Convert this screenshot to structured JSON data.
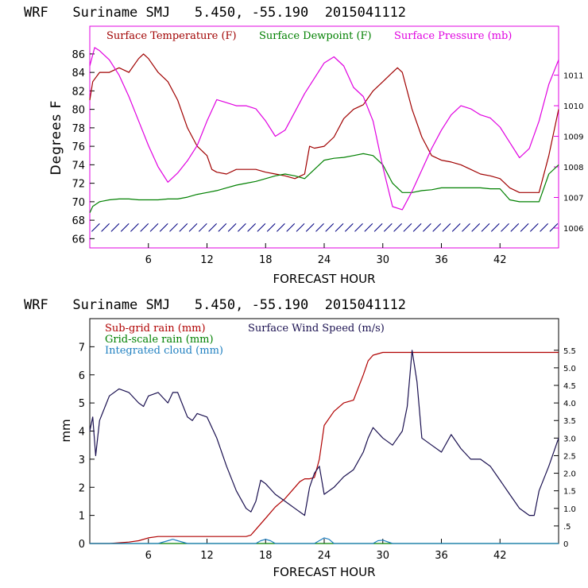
{
  "chart_data": [
    {
      "type": "line",
      "title": "WRF   Suriname SMJ   5.450, -55.190  2015041112",
      "xlabel": "FORECAST HOUR",
      "ylabel": "Degrees F",
      "xlim": [
        0,
        48
      ],
      "ylim": [
        65,
        89
      ],
      "xticks": [
        "6",
        "12",
        "18",
        "24",
        "30",
        "36",
        "42"
      ],
      "yticks": [
        "66",
        "68",
        "70",
        "72",
        "74",
        "76",
        "78",
        "80",
        "82",
        "84",
        "86"
      ],
      "right_axis": {
        "ylim": [
          1005.35,
          1012.6
        ],
        "ticks": [
          "1006",
          "1007",
          "1008",
          "1009",
          "1010",
          "1011"
        ]
      },
      "legend": [
        "Surface Temperature (F)",
        "Surface Dewpoint (F)",
        "Surface Pressure (mb)"
      ],
      "colors": {
        "temp": "#a00000",
        "dew": "#008000",
        "pres": "#e000e0",
        "wind": "#000080"
      },
      "series": [
        {
          "name": "Surface Temperature (F)",
          "axis": "left",
          "x": [
            0,
            0.3,
            1,
            2,
            3,
            4,
            5,
            5.5,
            6,
            7,
            8,
            9,
            10,
            11,
            12,
            12.5,
            13,
            14,
            15,
            16,
            17,
            18,
            19,
            20,
            21,
            22,
            22.5,
            23,
            24,
            25,
            26,
            27,
            28,
            29,
            30,
            31,
            31.5,
            32,
            33,
            34,
            35,
            36,
            37,
            38,
            39,
            40,
            41,
            42,
            42.5,
            43,
            44,
            45,
            46,
            47,
            48
          ],
          "values": [
            81,
            83,
            84,
            84,
            84.5,
            84,
            85.5,
            86,
            85.5,
            84,
            83,
            81,
            78,
            76,
            75,
            73.5,
            73.2,
            73,
            73.5,
            73.5,
            73.5,
            73.2,
            73,
            72.8,
            72.5,
            73,
            76,
            75.8,
            76,
            77,
            79,
            80,
            80.5,
            82,
            83,
            84,
            84.5,
            84,
            80,
            77,
            75,
            74.5,
            74.3,
            74,
            73.5,
            73,
            72.8,
            72.5,
            72,
            71.5,
            71,
            71,
            71,
            75,
            80
          ]
        },
        {
          "name": "Surface Dewpoint (F)",
          "axis": "left",
          "x": [
            0,
            0.3,
            1,
            2,
            3,
            4,
            5,
            6,
            7,
            8,
            9,
            10,
            11,
            12,
            13,
            14,
            15,
            16,
            17,
            18,
            19,
            20,
            21,
            22,
            23,
            24,
            25,
            26,
            27,
            28,
            29,
            30,
            31,
            32,
            33,
            34,
            35,
            36,
            37,
            38,
            39,
            40,
            41,
            42,
            43,
            44,
            45,
            46,
            47,
            48
          ],
          "values": [
            68.8,
            69.5,
            70,
            70.2,
            70.3,
            70.3,
            70.2,
            70.2,
            70.2,
            70.3,
            70.3,
            70.5,
            70.8,
            71,
            71.2,
            71.5,
            71.8,
            72,
            72.2,
            72.5,
            72.8,
            73,
            72.8,
            72.5,
            73.5,
            74.5,
            74.7,
            74.8,
            75,
            75.2,
            75,
            74,
            72,
            71,
            71,
            71.2,
            71.3,
            71.5,
            71.5,
            71.5,
            71.5,
            71.5,
            71.4,
            71.4,
            70.2,
            70,
            70,
            70,
            73,
            74
          ]
        },
        {
          "name": "Surface Pressure (mb)",
          "axis": "right",
          "x": [
            0,
            0.5,
            1,
            2,
            3,
            4,
            5,
            6,
            7,
            8,
            9,
            10,
            11,
            12,
            13,
            14,
            15,
            16,
            17,
            18,
            19,
            20,
            21,
            22,
            23,
            24,
            25,
            26,
            27,
            28,
            29,
            30,
            31,
            32,
            33,
            34,
            35,
            36,
            37,
            38,
            39,
            40,
            41,
            42,
            43,
            44,
            45,
            46,
            47,
            48
          ],
          "values": [
            1011.3,
            1011.9,
            1011.8,
            1011.5,
            1011.0,
            1010.3,
            1009.5,
            1008.7,
            1008.0,
            1007.5,
            1007.8,
            1008.2,
            1008.7,
            1009.5,
            1010.2,
            1010.1,
            1010.0,
            1010.0,
            1009.9,
            1009.5,
            1009.0,
            1009.2,
            1009.8,
            1010.4,
            1010.9,
            1011.4,
            1011.6,
            1011.3,
            1010.6,
            1010.3,
            1009.5,
            1008.0,
            1006.7,
            1006.6,
            1007.2,
            1007.9,
            1008.6,
            1009.2,
            1009.7,
            1010.0,
            1009.9,
            1009.7,
            1009.6,
            1009.3,
            1008.8,
            1008.3,
            1008.6,
            1009.5,
            1010.7,
            1011.5
          ]
        }
      ],
      "wind_barbs": {
        "x_start": 0.6,
        "x_end": 47.5,
        "count": 48,
        "y_value": 67.2
      }
    },
    {
      "type": "line",
      "title": "WRF   Suriname SMJ   5.450, -55.190  2015041112",
      "xlabel": "FORECAST HOUR",
      "ylabel": "mm",
      "xlim": [
        0,
        48
      ],
      "ylim": [
        0,
        8
      ],
      "xticks": [
        "6",
        "12",
        "18",
        "24",
        "30",
        "36",
        "42"
      ],
      "yticks": [
        "0",
        "1",
        "2",
        "3",
        "4",
        "5",
        "6",
        "7"
      ],
      "right_axis": {
        "ylim": [
          0,
          6.4
        ],
        "ticks": [
          "0",
          ".5",
          "1.0",
          "1.5",
          "2.0",
          "2.5",
          "3.0",
          "3.5",
          "4.0",
          "4.5",
          "5.0",
          "5.5"
        ]
      },
      "legend": [
        "Sub-grid rain (mm)",
        "Grid-scale rain (mm)",
        "Integrated cloud (mm)",
        "Surface Wind Speed (m/s)"
      ],
      "colors": {
        "subgrid": "#b00000",
        "grid": "#008000",
        "cloud": "#1e7fc0",
        "wind": "#1a1050"
      },
      "series": [
        {
          "name": "Sub-grid rain (mm)",
          "axis": "left",
          "x": [
            0,
            2,
            4,
            5,
            6,
            7,
            7.5,
            8,
            10,
            12,
            14,
            16,
            16.5,
            17,
            18,
            19,
            20,
            21,
            21.5,
            22,
            22.5,
            23,
            23.5,
            24,
            25,
            26,
            27,
            28,
            28.5,
            29,
            30,
            31,
            32,
            33,
            34,
            36,
            38,
            40,
            42,
            44,
            46,
            48
          ],
          "values": [
            0,
            0,
            0.05,
            0.1,
            0.2,
            0.25,
            0.25,
            0.25,
            0.25,
            0.25,
            0.25,
            0.25,
            0.3,
            0.5,
            0.9,
            1.3,
            1.6,
            2,
            2.2,
            2.3,
            2.3,
            2.35,
            3,
            4.2,
            4.7,
            5,
            5.1,
            6,
            6.5,
            6.7,
            6.8,
            6.8,
            6.8,
            6.8,
            6.8,
            6.8,
            6.8,
            6.8,
            6.8,
            6.8,
            6.8,
            6.8
          ]
        },
        {
          "name": "Grid-scale rain (mm)",
          "axis": "left",
          "x": [
            0,
            48
          ],
          "values": [
            0,
            0
          ]
        },
        {
          "name": "Integrated cloud (mm)",
          "axis": "left",
          "x": [
            0,
            7,
            8,
            8.5,
            9,
            10,
            17,
            17.5,
            18,
            18.5,
            19,
            23,
            24,
            24.5,
            25,
            26,
            29,
            29.5,
            30,
            31,
            48
          ],
          "values": [
            0,
            0,
            0.1,
            0.15,
            0.1,
            0,
            0,
            0.1,
            0.15,
            0.1,
            0,
            0,
            0.2,
            0.15,
            0,
            0,
            0,
            0.1,
            0.12,
            0,
            0
          ]
        },
        {
          "name": "Surface Wind Speed (m/s)",
          "axis": "right",
          "x": [
            0,
            0.3,
            0.6,
            1,
            2,
            3,
            4,
            5,
            5.5,
            6,
            7,
            8,
            8.5,
            9,
            10,
            10.5,
            11,
            12,
            13,
            14,
            15,
            16,
            16.5,
            17,
            17.5,
            18,
            19,
            20,
            21,
            22,
            22.5,
            23,
            23.5,
            24,
            25,
            26,
            27,
            28,
            28.5,
            29,
            30,
            31,
            31.5,
            32,
            32.5,
            33,
            33.5,
            34,
            35,
            36,
            37,
            38,
            39,
            40,
            41,
            42,
            43,
            44,
            45,
            45.5,
            46,
            47,
            48
          ],
          "values": [
            3.2,
            3.6,
            2.5,
            3.5,
            4.2,
            4.4,
            4.3,
            4.0,
            3.9,
            4.2,
            4.3,
            4.0,
            4.3,
            4.3,
            3.6,
            3.5,
            3.7,
            3.6,
            3.0,
            2.2,
            1.5,
            1.0,
            0.9,
            1.2,
            1.8,
            1.7,
            1.4,
            1.2,
            1.0,
            0.8,
            1.6,
            2.0,
            2.2,
            1.4,
            1.6,
            1.9,
            2.1,
            2.6,
            3.0,
            3.3,
            3.0,
            2.8,
            3.0,
            3.2,
            3.9,
            5.5,
            4.6,
            3.0,
            2.8,
            2.6,
            3.1,
            2.7,
            2.4,
            2.4,
            2.2,
            1.8,
            1.4,
            1.0,
            0.8,
            0.8,
            1.5,
            2.2,
            3.0
          ]
        }
      ]
    }
  ]
}
